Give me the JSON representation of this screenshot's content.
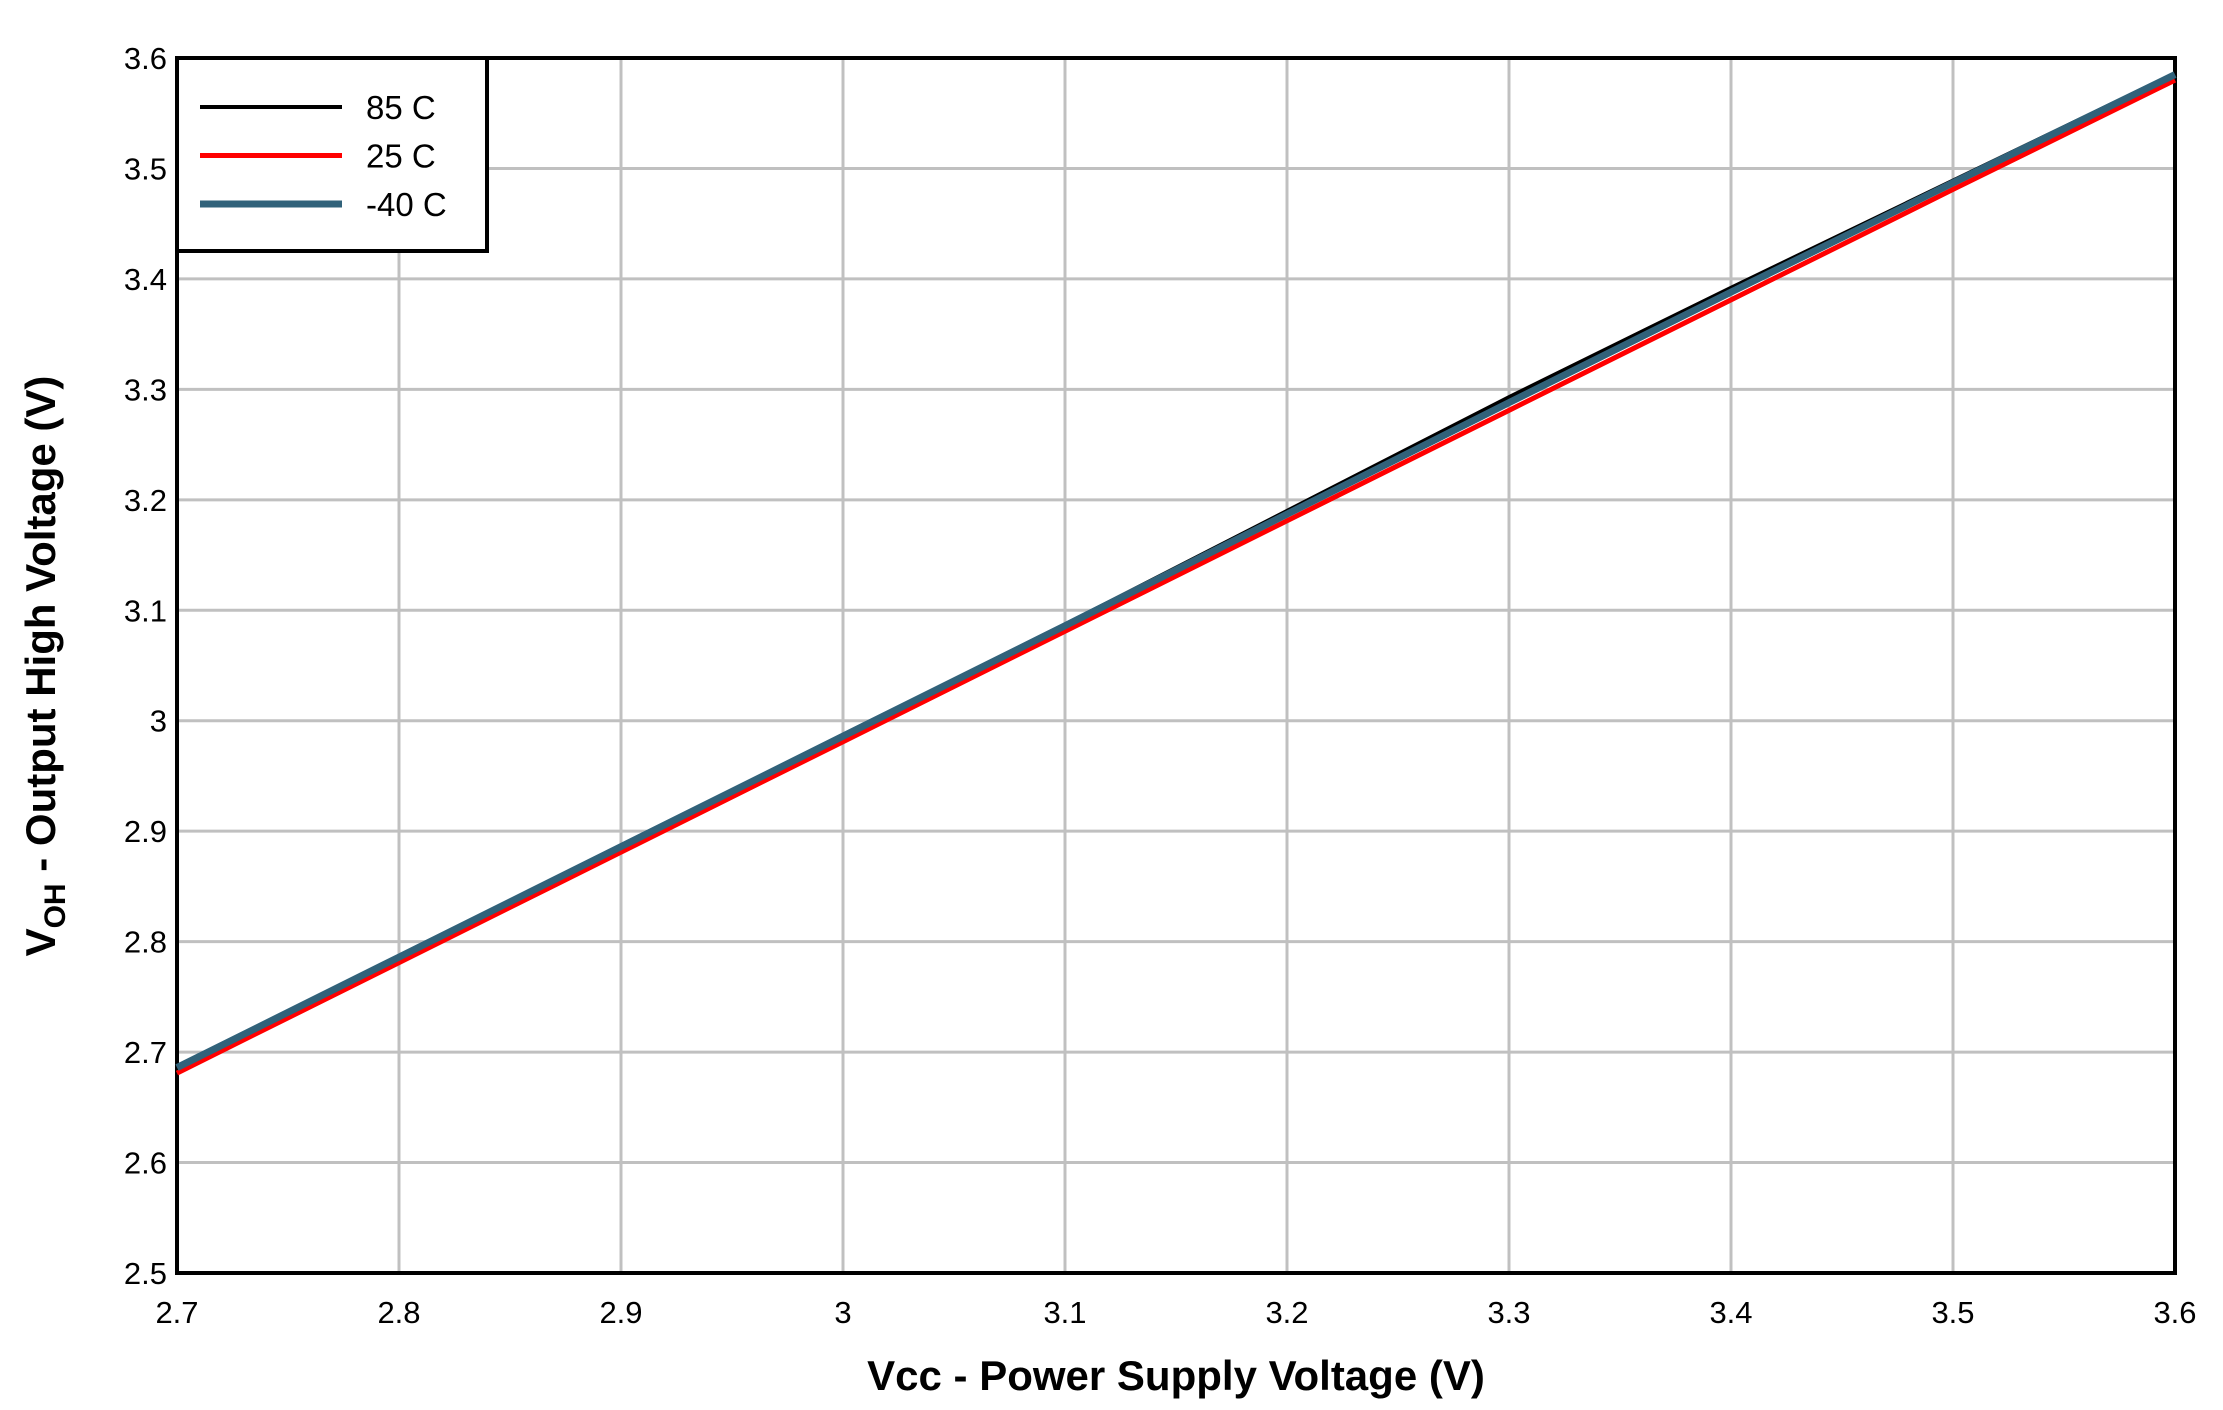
{
  "chart_data": {
    "type": "line",
    "x_label": "Vcc - Power Supply Voltage  (V)",
    "y_label": {
      "main": "V",
      "sub": "OH",
      "rest": " - Output High Voltage (V)"
    },
    "x": [
      2.7,
      2.8,
      2.9,
      3.0,
      3.1,
      3.2,
      3.3,
      3.4,
      3.5,
      3.6
    ],
    "series": [
      {
        "name": "85 C",
        "color": "#000000",
        "values": [
          2.686,
          2.786,
          2.886,
          2.986,
          3.087,
          3.19,
          3.293,
          3.392,
          3.489,
          3.586
        ]
      },
      {
        "name": "25 C",
        "color": "#ff0000",
        "values": [
          2.681,
          2.781,
          2.881,
          2.981,
          3.081,
          3.181,
          3.281,
          3.381,
          3.481,
          3.58
        ]
      },
      {
        "name": "-40 C",
        "color": "#31627a",
        "values": [
          2.686,
          2.786,
          2.886,
          2.986,
          3.086,
          3.187,
          3.288,
          3.388,
          3.487,
          3.585
        ]
      }
    ],
    "xlim": [
      2.7,
      3.6
    ],
    "xticks": [
      2.7,
      2.8,
      2.9,
      3,
      3.1,
      3.2,
      3.3,
      3.4,
      3.5,
      3.6
    ],
    "ylim": [
      2.5,
      3.6
    ],
    "yticks": [
      2.5,
      2.6,
      2.7,
      2.8,
      2.9,
      3,
      3.1,
      3.2,
      3.3,
      3.4,
      3.5,
      3.6
    ],
    "grid": true,
    "legend": "top-left"
  }
}
